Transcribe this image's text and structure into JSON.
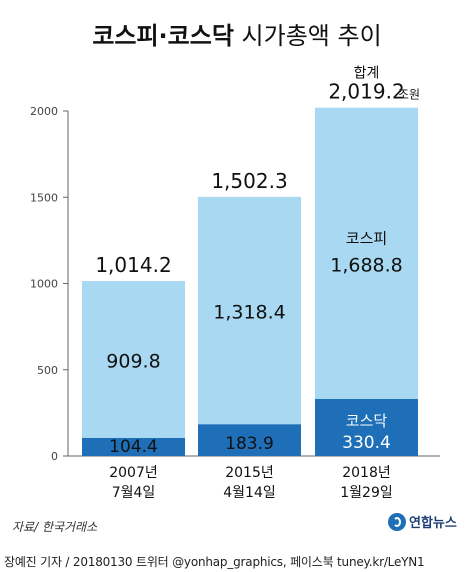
{
  "title": {
    "bold": "코스피·코스닥",
    "rest": " 시가총액 추이"
  },
  "chart_data": {
    "type": "bar",
    "stacked": true,
    "categories": [
      {
        "line1": "2007년",
        "line2": "7월4일"
      },
      {
        "line1": "2015년",
        "line2": "4월14일"
      },
      {
        "line1": "2018년",
        "line2": "1월29일"
      }
    ],
    "series": [
      {
        "name": "코스닥",
        "values": [
          104.4,
          183.9,
          330.4
        ],
        "color": "#1e6fb8"
      },
      {
        "name": "코스피",
        "values": [
          909.8,
          1318.4,
          1688.8
        ],
        "color": "#a8d8f2"
      }
    ],
    "totals": [
      "1,014.2",
      "1,502.3",
      "2,019.2"
    ],
    "value_labels": {
      "kospi": [
        "909.8",
        "1,318.4",
        "1,688.8"
      ],
      "kosdaq": [
        "104.4",
        "183.9",
        "330.4"
      ]
    },
    "total_prefix": "합계",
    "total_unit": "조원",
    "ylim": [
      0,
      2000
    ],
    "yticks": [
      "0",
      "500",
      "1000",
      "1500",
      "2000"
    ],
    "ytick_values": [
      0,
      500,
      1000,
      1500,
      2000
    ]
  },
  "footer": {
    "source": "자료/ 한국거래소",
    "credit": "장예진 기자 / 20180130 트위터 @yonhap_graphics, 페이스북 tuney.kr/LeYN1",
    "logo_text": "연합뉴스"
  },
  "colors": {
    "kospi": "#a8d8f2",
    "kosdaq": "#1e6fb8",
    "text": "#111111",
    "axis": "#666666"
  }
}
